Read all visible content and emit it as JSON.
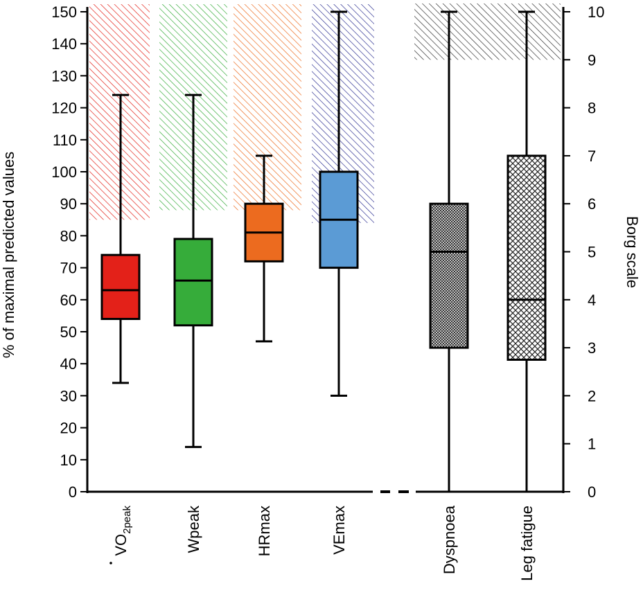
{
  "chart_data": {
    "type": "box",
    "left_axis": {
      "label": "% of maximal predicted values",
      "ylim": [
        0,
        150
      ],
      "ticks": [
        0,
        10,
        20,
        30,
        40,
        50,
        60,
        70,
        80,
        90,
        100,
        110,
        120,
        130,
        140,
        150
      ]
    },
    "right_axis": {
      "label": "Borg scale",
      "ylim": [
        0,
        10
      ],
      "ticks": [
        0,
        1,
        2,
        3,
        4,
        5,
        6,
        7,
        8,
        9,
        10
      ]
    },
    "left_group": [
      {
        "label": "VO",
        "sub": "2peak",
        "min": 34,
        "q1": 54,
        "median": 63,
        "q3": 74,
        "max": 124,
        "color": "#e32119",
        "normal_lower": 85
      },
      {
        "label": "Wpeak",
        "min": 14,
        "q1": 52,
        "median": 66,
        "q3": 79,
        "max": 124,
        "color": "#36ac3a",
        "normal_lower": 88
      },
      {
        "label": "HRmax",
        "min": 47,
        "q1": 72,
        "median": 81,
        "q3": 90,
        "max": 105,
        "color": "#ec6b1f",
        "normal_lower": 88
      },
      {
        "label": "VEmax",
        "min": 30,
        "q1": 70,
        "median": 85,
        "q3": 100,
        "max": 150,
        "color": "#5b9bd5",
        "normal_lower": 84,
        "hatch_color": "#2e3192"
      }
    ],
    "right_group": [
      {
        "label": "Dyspnoea",
        "min": 0,
        "q1": 3,
        "median": 5,
        "q3": 6,
        "max": 10,
        "pattern": "fine-cross"
      },
      {
        "label": "Leg fatigue",
        "min": 0,
        "q1": 2.75,
        "median": 4,
        "q3": 7,
        "max": 10,
        "pattern": "coarse-cross"
      }
    ],
    "borg_normal_lower": 9,
    "hatch_colors": {
      "borg": "#333333"
    }
  }
}
